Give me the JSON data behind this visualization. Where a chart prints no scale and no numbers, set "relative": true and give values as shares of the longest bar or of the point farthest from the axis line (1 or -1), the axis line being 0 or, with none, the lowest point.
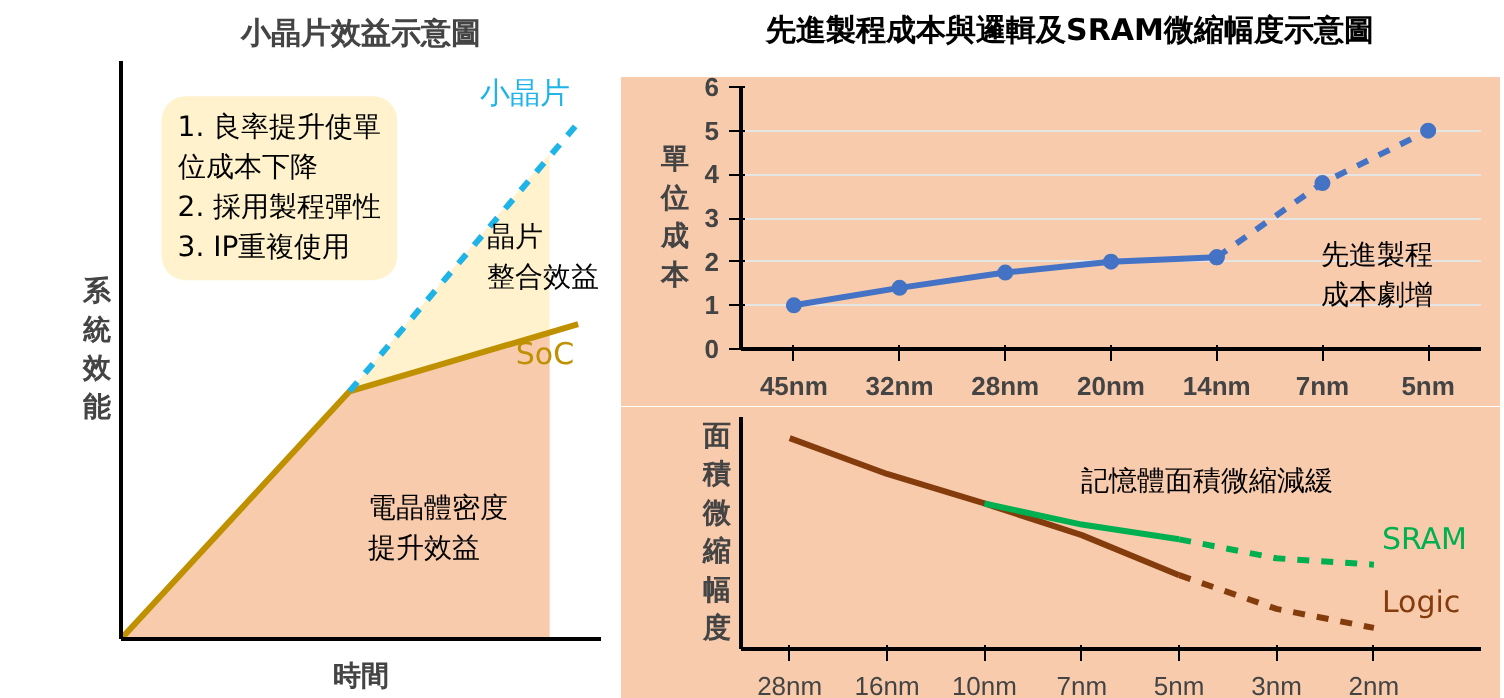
{
  "chart_data": [
    {
      "type": "line",
      "title": "小晶片效益示意圖",
      "xlabel": "時間",
      "ylabel": "系統效能",
      "relative": true,
      "categories": [
        null,
        null,
        null,
        null,
        null,
        null,
        null,
        null,
        null,
        null,
        null,
        null,
        null,
        null,
        null,
        null,
        null
      ],
      "series": [
        {
          "type": "area",
          "color": "#fff2cc",
          "values": [
            null,
            null,
            null,
            null,
            null,
            null,
            null,
            null,
            0.48,
            null,
            null,
            null,
            null,
            null,
            null,
            0.94,
            null
          ]
        },
        {
          "type": "area",
          "color": "#f8cbad",
          "values": [
            0,
            null,
            null,
            null,
            null,
            null,
            null,
            null,
            0.48,
            null,
            null,
            null,
            null,
            null,
            null,
            0.59,
            null
          ]
        },
        {
          "name": "SoC",
          "color": "#bf9000",
          "values": [
            0,
            null,
            null,
            null,
            null,
            null,
            null,
            null,
            0.48,
            null,
            null,
            null,
            null,
            null,
            null,
            null,
            0.61
          ],
          "line_style": "solid"
        },
        {
          "name": "小晶片",
          "color": "#1fb4e8",
          "values": [
            null,
            null,
            null,
            null,
            null,
            null,
            null,
            null,
            0.48,
            null,
            null,
            null,
            null,
            null,
            null,
            null,
            1
          ],
          "line_style": "dashed"
        }
      ],
      "annotations": [
        "1. 良率提升使單位成本下降\n2. 採用製程彈性\n3. IP重複使用",
        "晶片整合效益",
        "電晶體密度提升效益"
      ]
    },
    {
      "type": "line",
      "title": "先進製程成本與邏輯及SRAM微縮幅度示意圖",
      "ylabel": "單位成本",
      "categories": [
        "45nm",
        "32nm",
        "28nm",
        "20nm",
        "14nm",
        "7nm",
        "5nm"
      ],
      "ylim": [
        0,
        6
      ],
      "yticks": [
        0,
        1,
        2,
        3,
        4,
        5,
        6
      ],
      "grid": "y",
      "marker": "circle",
      "series": [
        {
          "color": "#4472c4",
          "values": [
            1.0,
            1.4,
            1.75,
            2.0,
            2.1,
            null,
            null
          ],
          "line_style": "solid"
        },
        {
          "color": "#4472c4",
          "values": [
            null,
            null,
            null,
            null,
            2.1,
            3.8,
            5.0
          ],
          "line_style": "dashed"
        }
      ],
      "annotations": [
        "先進製程成本劇增"
      ]
    },
    {
      "type": "line",
      "ylabel": "面積微縮幅度",
      "relative": true,
      "categories": [
        "28nm",
        "16nm",
        "10nm",
        "7nm",
        "5nm",
        "3nm",
        "2nm"
      ],
      "series": [
        {
          "color": "#843c0c",
          "values": [
            1.0,
            0.83,
            0.69,
            0.54,
            0.35,
            null,
            null
          ],
          "line_style": "solid"
        },
        {
          "name": "Logic",
          "color": "#843c0c",
          "values": [
            null,
            null,
            null,
            null,
            0.35,
            0.19,
            0.1
          ],
          "line_style": "dashed"
        },
        {
          "color": "#00b050",
          "values": [
            null,
            null,
            0.69,
            0.59,
            0.52,
            null,
            null
          ],
          "line_style": "solid"
        },
        {
          "name": "SRAM",
          "color": "#00b050",
          "values": [
            null,
            null,
            null,
            null,
            0.52,
            0.43,
            0.4
          ],
          "line_style": "dashed"
        }
      ],
      "annotations": [
        "記憶體面積微縮減緩"
      ]
    }
  ]
}
